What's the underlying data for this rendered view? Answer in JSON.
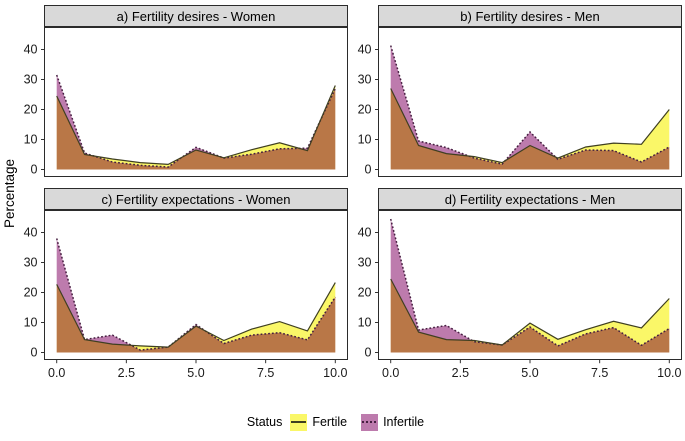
{
  "figure": {
    "y_axis_title": "Percentage",
    "legend_title": "Status",
    "legend_entries": [
      "Fertile",
      "Infertile"
    ]
  },
  "chart_data": {
    "type": "area",
    "description": "Four-panel faceted overlapping area chart (percentage distributions on 0-10 scale)",
    "ylabel": "Percentage",
    "xlabel": "",
    "legend_title": "Status",
    "series_labels": [
      "Fertile",
      "Infertile"
    ],
    "x": [
      0,
      1,
      2,
      3,
      4,
      5,
      6,
      7,
      8,
      9,
      10
    ],
    "x_tick_values": [
      0,
      2.5,
      5,
      7.5,
      10
    ],
    "x_tick_labels": [
      "0.0",
      "2.5",
      "5.0",
      "7.5",
      "10.0"
    ],
    "y_tick_values": [
      0,
      10,
      20,
      30,
      40
    ],
    "y_tick_labels": [
      "0",
      "10",
      "20",
      "30",
      "40"
    ],
    "ylim": [
      -2.5,
      47.5
    ],
    "grid": false,
    "legend_position": "bottom",
    "panels": [
      {
        "key": "a",
        "title": "a) Fertility desires - Women",
        "fertile": [
          24.5,
          5.0,
          3.5,
          2.3,
          1.7,
          6.5,
          3.9,
          6.6,
          8.9,
          6.3,
          28.0
        ],
        "infertile": [
          31.5,
          5.5,
          2.5,
          1.4,
          0.8,
          7.4,
          3.8,
          5.1,
          6.9,
          7.1,
          27.0
        ]
      },
      {
        "key": "b",
        "title": "b) Fertility desires - Men",
        "fertile": [
          27.0,
          8.0,
          5.3,
          4.3,
          2.3,
          8.0,
          3.8,
          7.5,
          8.8,
          8.4,
          20.0
        ],
        "infertile": [
          41.3,
          9.5,
          7.3,
          3.8,
          1.8,
          12.5,
          3.4,
          6.5,
          6.3,
          2.5,
          7.5
        ]
      },
      {
        "key": "c",
        "title": "c) Fertility expectations - Women",
        "fertile": [
          22.7,
          4.3,
          2.8,
          2.2,
          1.8,
          8.8,
          4.0,
          7.8,
          10.3,
          7.2,
          23.3
        ],
        "infertile": [
          38.0,
          4.3,
          5.8,
          0.8,
          1.8,
          9.3,
          3.0,
          5.8,
          6.6,
          4.2,
          18.5
        ]
      },
      {
        "key": "d",
        "title": "d) Fertility expectations - Men",
        "fertile": [
          24.5,
          6.8,
          4.3,
          4.0,
          2.5,
          9.8,
          4.4,
          7.6,
          10.4,
          8.2,
          18.0
        ],
        "infertile": [
          44.5,
          7.5,
          9.0,
          3.6,
          2.5,
          8.5,
          2.2,
          6.2,
          8.3,
          2.4,
          8.0
        ]
      }
    ],
    "colors": {
      "fertile_fill": "#faf768",
      "infertile_fill": "#bd7bad",
      "overlap_observed": "#b1795c",
      "fertile_line": "#3f3f21",
      "infertile_line": "#461f41",
      "panel_border": "#2b2b2b",
      "strip_bg": "#d9d9d9",
      "tick": "#333333",
      "tick_text": "#1a1a1a"
    }
  }
}
